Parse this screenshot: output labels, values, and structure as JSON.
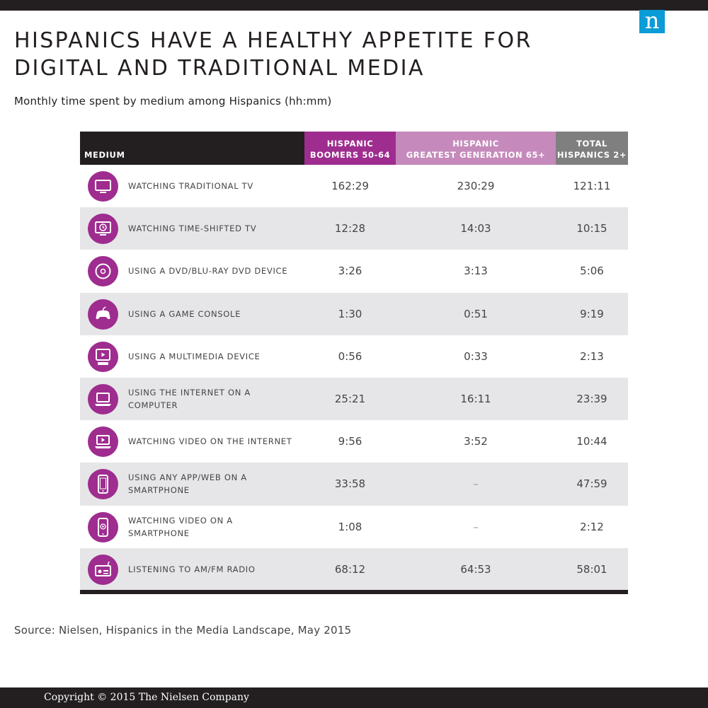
{
  "title": "HISPANICS HAVE A HEALTHY APPETITE FOR DIGITAL AND TRADITIONAL MEDIA",
  "subtitle": "Monthly time spent by medium among Hispanics (hh:mm)",
  "logo_letter": "n",
  "source": "Source: Nielsen, Hispanics in the Media Landscape, May 2015",
  "copyright": "Copyright © 2015 The Nielsen Company",
  "colors": {
    "dark": "#231f20",
    "boomers_header": "#9e2d8f",
    "greatest_header": "#c58abb",
    "total_header": "#7f7f7f",
    "icon_fill": "#9e2d8f",
    "row_alt": "#e6e6e8",
    "logo": "#0b9bd7"
  },
  "chart_data": {
    "type": "table",
    "title": "HISPANICS HAVE A HEALTHY APPETITE FOR DIGITAL AND TRADITIONAL MEDIA",
    "subtitle": "Monthly time spent by medium among Hispanics (hh:mm)",
    "columns": [
      {
        "key": "medium",
        "label": "MEDIUM"
      },
      {
        "key": "boomers",
        "label": "HISPANIC\nBOOMERS 50-64"
      },
      {
        "key": "greatest",
        "label": "HISPANIC\nGREATEST GENERATION 65+"
      },
      {
        "key": "total",
        "label": "TOTAL\nHISPANICS 2+"
      }
    ],
    "rows": [
      {
        "icon": "tv-icon",
        "medium": "WATCHING TRADITIONAL TV",
        "boomers": "162:29",
        "greatest": "230:29",
        "total": "121:11"
      },
      {
        "icon": "time-shifted-tv-icon",
        "medium": "WATCHING TIME-SHIFTED TV",
        "boomers": "12:28",
        "greatest": "14:03",
        "total": "10:15"
      },
      {
        "icon": "dvd-icon",
        "medium": "USING A DVD/BLU-RAY DVD DEVICE",
        "boomers": "3:26",
        "greatest": "3:13",
        "total": "5:06"
      },
      {
        "icon": "game-controller-icon",
        "medium": "USING A GAME CONSOLE",
        "boomers": "1:30",
        "greatest": "0:51",
        "total": "9:19"
      },
      {
        "icon": "multimedia-device-icon",
        "medium": "USING A MULTIMEDIA DEVICE",
        "boomers": "0:56",
        "greatest": "0:33",
        "total": "2:13"
      },
      {
        "icon": "laptop-icon",
        "medium": "USING THE INTERNET ON A\nCOMPUTER",
        "boomers": "25:21",
        "greatest": "16:11",
        "total": "23:39"
      },
      {
        "icon": "laptop-video-icon",
        "medium": "WATCHING VIDEO ON THE INTERNET",
        "boomers": "9:56",
        "greatest": "3:52",
        "total": "10:44"
      },
      {
        "icon": "smartphone-icon",
        "medium": "USING ANY APP/WEB ON A\nSMARTPHONE",
        "boomers": "33:58",
        "greatest": "–",
        "total": "47:59"
      },
      {
        "icon": "smartphone-video-icon",
        "medium": "WATCHING VIDEO ON A\nSMARTPHONE",
        "boomers": "1:08",
        "greatest": "–",
        "total": "2:12"
      },
      {
        "icon": "radio-icon",
        "medium": "LISTENING TO AM/FM RADIO",
        "boomers": "68:12",
        "greatest": "64:53",
        "total": "58:01"
      }
    ]
  }
}
